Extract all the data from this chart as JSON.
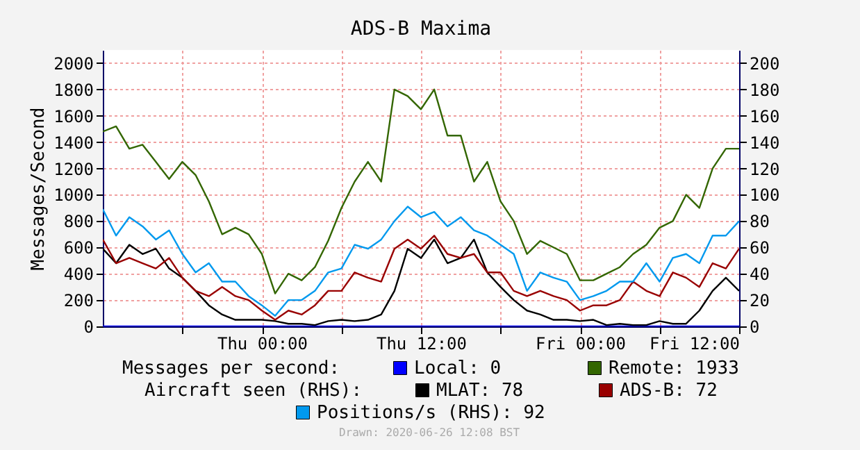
{
  "chart_data": {
    "type": "line",
    "title": "ADS-B Maxima",
    "ylabel": "Messages/Second",
    "x": [
      "2020-06-24T12:00",
      "2020-06-24T13:00",
      "2020-06-24T14:00",
      "2020-06-24T15:00",
      "2020-06-24T16:00",
      "2020-06-24T17:00",
      "2020-06-24T18:00",
      "2020-06-24T19:00",
      "2020-06-24T20:00",
      "2020-06-24T21:00",
      "2020-06-24T22:00",
      "2020-06-24T23:00",
      "2020-06-25T00:00",
      "2020-06-25T01:00",
      "2020-06-25T02:00",
      "2020-06-25T03:00",
      "2020-06-25T04:00",
      "2020-06-25T05:00",
      "2020-06-25T06:00",
      "2020-06-25T07:00",
      "2020-06-25T08:00",
      "2020-06-25T09:00",
      "2020-06-25T10:00",
      "2020-06-25T11:00",
      "2020-06-25T12:00",
      "2020-06-25T13:00",
      "2020-06-25T14:00",
      "2020-06-25T15:00",
      "2020-06-25T16:00",
      "2020-06-25T17:00",
      "2020-06-25T18:00",
      "2020-06-25T19:00",
      "2020-06-25T20:00",
      "2020-06-25T21:00",
      "2020-06-25T22:00",
      "2020-06-25T23:00",
      "2020-06-26T00:00",
      "2020-06-26T01:00",
      "2020-06-26T02:00",
      "2020-06-26T03:00",
      "2020-06-26T04:00",
      "2020-06-26T05:00",
      "2020-06-26T06:00",
      "2020-06-26T07:00",
      "2020-06-26T08:00",
      "2020-06-26T09:00",
      "2020-06-26T10:00",
      "2020-06-26T11:00",
      "2020-06-26T12:00"
    ],
    "series": [
      {
        "name": "Local: 0",
        "color": "#0000ff",
        "values": [
          0,
          0,
          0,
          0,
          0,
          0,
          0,
          0,
          0,
          0,
          0,
          0,
          0,
          0,
          0,
          0,
          0,
          0,
          0,
          0,
          0,
          0,
          0,
          0,
          0,
          0,
          0,
          0,
          0,
          0,
          0,
          0,
          0,
          0,
          0,
          0,
          0,
          0,
          0,
          0,
          0,
          0,
          0,
          0,
          0,
          0,
          0,
          0,
          0
        ]
      },
      {
        "name": "Remote: 1933",
        "color": "#336600",
        "values": [
          1480,
          1520,
          1350,
          1380,
          1250,
          1120,
          1250,
          1150,
          950,
          700,
          750,
          700,
          550,
          250,
          400,
          350,
          450,
          650,
          900,
          1100,
          1250,
          1100,
          1800,
          1750,
          1650,
          1800,
          1450,
          1450,
          1100,
          1250,
          950,
          800,
          550,
          650,
          600,
          550,
          350,
          350,
          400,
          450,
          550,
          620,
          750,
          800,
          1000,
          900,
          1200,
          1350,
          1350
        ]
      },
      {
        "name": "MLAT: 78",
        "color": "#000000",
        "axis": "y2",
        "values": [
          59,
          48,
          62,
          55,
          59,
          44,
          37,
          27,
          16,
          9,
          5,
          5,
          5,
          4,
          2,
          2,
          1,
          4,
          5,
          4,
          5,
          9,
          27,
          59,
          52,
          66,
          48,
          52,
          66,
          41,
          30,
          20,
          12,
          9,
          5,
          5,
          4,
          5,
          1,
          2,
          1,
          1,
          4,
          2,
          2,
          12,
          27,
          37,
          27
        ]
      },
      {
        "name": "ADS-B: 72",
        "color": "#990000",
        "axis": "y2",
        "values": [
          66,
          48,
          52,
          48,
          44,
          52,
          37,
          27,
          23,
          30,
          23,
          20,
          12,
          5,
          12,
          9,
          16,
          27,
          27,
          41,
          37,
          34,
          59,
          66,
          59,
          69,
          55,
          52,
          55,
          41,
          41,
          27,
          23,
          27,
          23,
          20,
          12,
          16,
          16,
          20,
          34,
          27,
          23,
          41,
          37,
          30,
          48,
          44,
          59
        ]
      },
      {
        "name": "Positions/s (RHS): 92",
        "color": "#0099ee",
        "axis": "y2",
        "values": [
          89,
          69,
          83,
          76,
          66,
          73,
          55,
          41,
          48,
          34,
          34,
          23,
          16,
          8,
          20,
          20,
          27,
          41,
          44,
          62,
          59,
          66,
          80,
          91,
          83,
          87,
          76,
          83,
          73,
          69,
          62,
          55,
          27,
          41,
          37,
          34,
          20,
          23,
          27,
          34,
          34,
          48,
          34,
          52,
          55,
          48,
          69,
          69,
          80
        ]
      }
    ],
    "xlim": [
      "2020-06-24T12:00",
      "2020-06-26T12:00"
    ],
    "xticks": [
      {
        "value": "2020-06-24T18:00",
        "label": null
      },
      {
        "value": "2020-06-25T00:00",
        "label": "Thu 00:00"
      },
      {
        "value": "2020-06-25T06:00",
        "label": null
      },
      {
        "value": "2020-06-25T12:00",
        "label": "Thu 12:00"
      },
      {
        "value": "2020-06-25T18:00",
        "label": null
      },
      {
        "value": "2020-06-26T00:00",
        "label": "Fri 00:00"
      },
      {
        "value": "2020-06-26T06:00",
        "label": null
      },
      {
        "value": "2020-06-26T12:00",
        "label": "Fri 12:00"
      }
    ],
    "ylim": [
      0,
      2100
    ],
    "yticks": [
      0,
      200,
      400,
      600,
      800,
      1000,
      1200,
      1400,
      1600,
      1800,
      2000
    ],
    "y2lim": [
      0,
      210
    ],
    "y2ticks": [
      0,
      20,
      40,
      60,
      80,
      100,
      120,
      140,
      160,
      180,
      200
    ],
    "grid": true,
    "legend": "bottom",
    "line_style": "solid",
    "annotations": [
      "Messages per second:",
      "Aircraft seen (RHS):",
      "Drawn: 2020-06-26 12:08 BST"
    ]
  }
}
